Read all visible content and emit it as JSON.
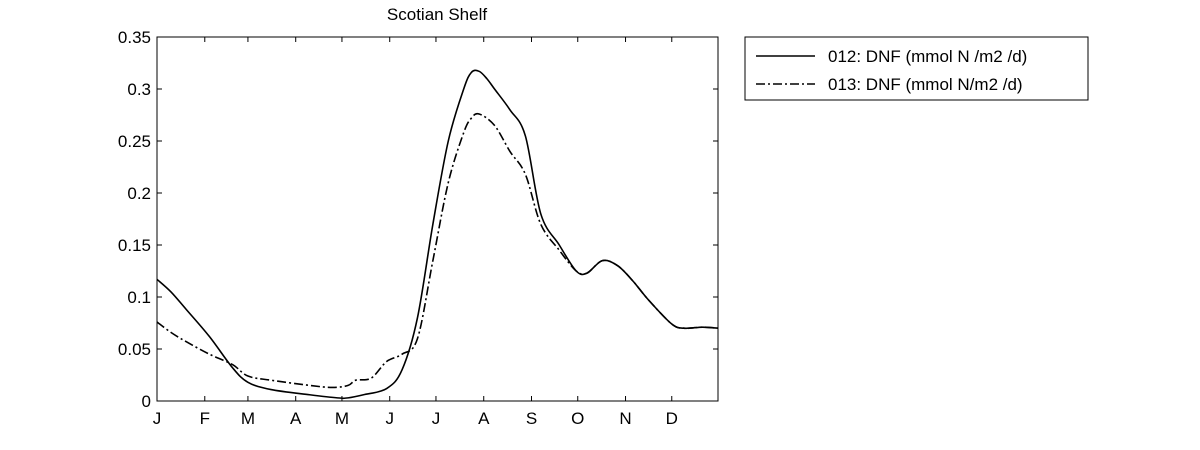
{
  "chart_data": {
    "type": "line",
    "title": "Scotian Shelf",
    "xlabel": "",
    "ylabel": "",
    "x_ticks": [
      "J",
      "F",
      "M",
      "A",
      "M",
      "J",
      "J",
      "A",
      "S",
      "O",
      "N",
      "D"
    ],
    "y_ticks": [
      "0",
      "0.05",
      "0.1",
      "0.15",
      "0.2",
      "0.25",
      "0.3",
      "0.35"
    ],
    "xlim": [
      1,
      365
    ],
    "ylim": [
      0,
      0.35
    ],
    "grid": false,
    "legend_position": "outside-top-right",
    "series": [
      {
        "name": "012: DNF (mmol N /m2 /d)",
        "line_style": "solid",
        "color": "#000000",
        "x": [
          1,
          10,
          20,
          35,
          50,
          60,
          75,
          100,
          118,
          125,
          135,
          150,
          160,
          170,
          180,
          190,
          200,
          205,
          210,
          215,
          220,
          230,
          240,
          250,
          262,
          273,
          280,
          290,
          300,
          310,
          320,
          335,
          343,
          355,
          365
        ],
        "y": [
          0.117,
          0.105,
          0.088,
          0.062,
          0.032,
          0.018,
          0.011,
          0.006,
          0.003,
          0.003,
          0.006,
          0.012,
          0.03,
          0.08,
          0.17,
          0.25,
          0.3,
          0.316,
          0.317,
          0.31,
          0.3,
          0.28,
          0.255,
          0.18,
          0.15,
          0.125,
          0.123,
          0.135,
          0.13,
          0.115,
          0.097,
          0.074,
          0.07,
          0.071,
          0.07
        ]
      },
      {
        "name": "013: DNF (mmol N/m2 /d)",
        "line_style": "dash-dot",
        "color": "#000000",
        "x": [
          1,
          10,
          20,
          35,
          50,
          60,
          75,
          100,
          115,
          125,
          130,
          140,
          150,
          160,
          170,
          180,
          190,
          200,
          205,
          210,
          220,
          230,
          240,
          250,
          262,
          273,
          280,
          290,
          300,
          310,
          320,
          335,
          343,
          355,
          365
        ],
        "y": [
          0.076,
          0.066,
          0.057,
          0.045,
          0.035,
          0.024,
          0.02,
          0.015,
          0.013,
          0.015,
          0.02,
          0.022,
          0.038,
          0.045,
          0.06,
          0.135,
          0.21,
          0.258,
          0.272,
          0.276,
          0.265,
          0.24,
          0.218,
          0.17,
          0.145,
          0.125,
          0.123,
          0.135,
          0.13,
          0.115,
          0.097,
          0.074,
          0.07,
          0.071,
          0.07
        ]
      }
    ]
  }
}
